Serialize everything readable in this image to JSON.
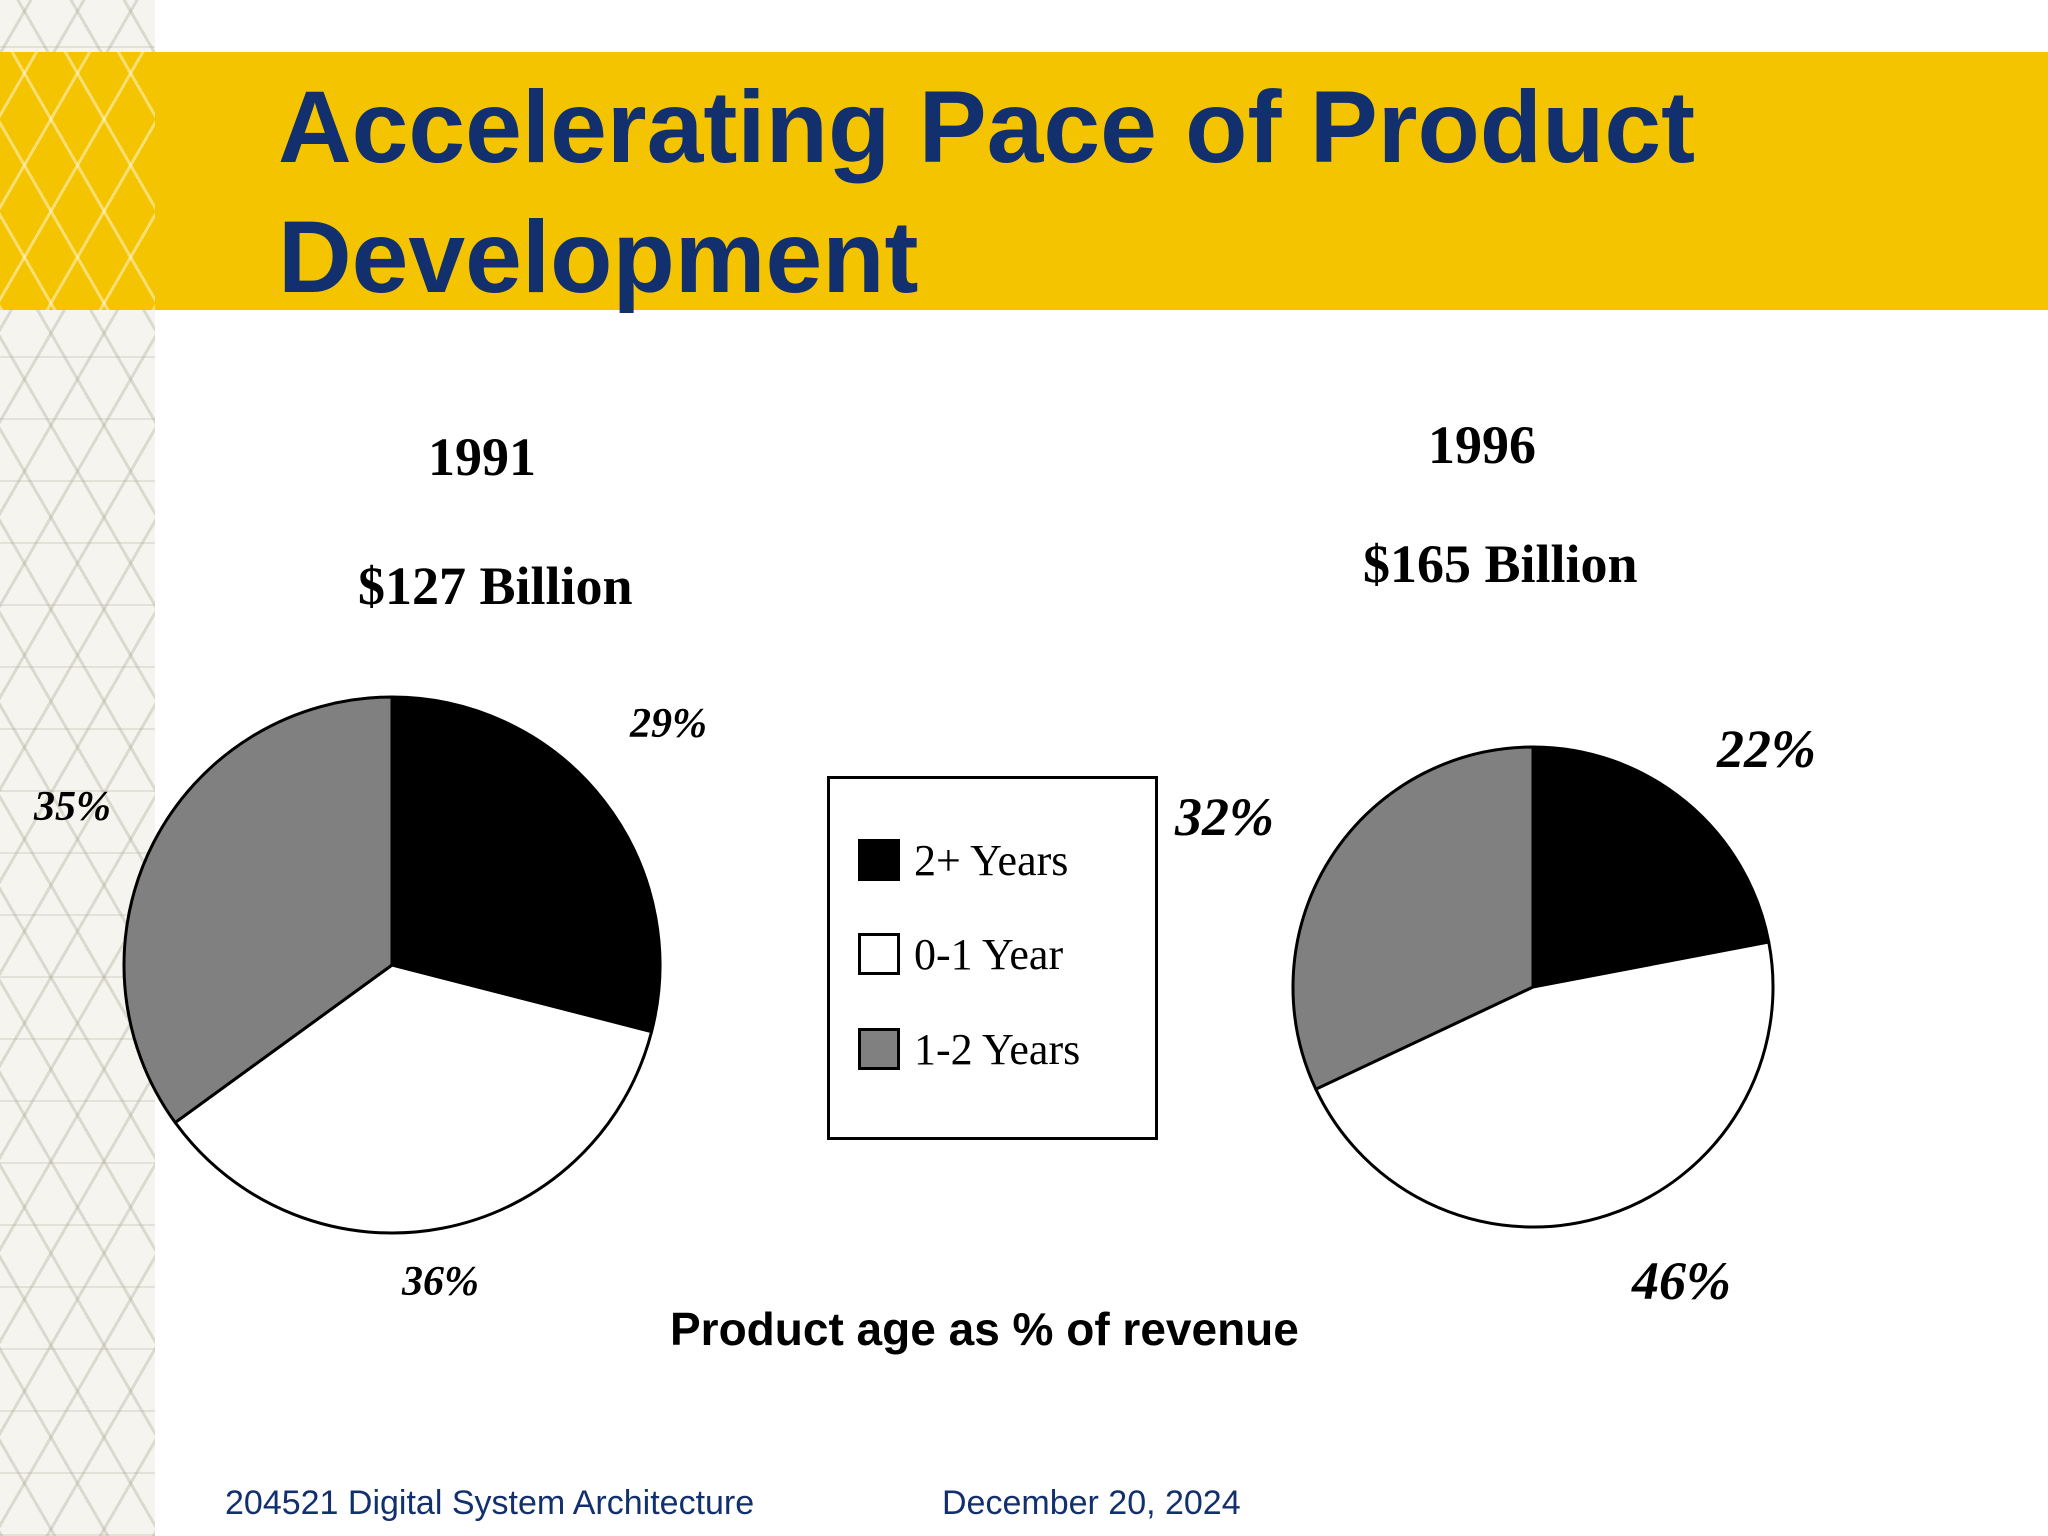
{
  "slide": {
    "title": "Accelerating Pace of Product Development",
    "caption": "Product age as % of revenue",
    "footer": {
      "course": "204521 Digital System Architecture",
      "date": "December 20, 2024"
    }
  },
  "colors": {
    "title_band": "#f5c400",
    "title_text": "#13306e",
    "series_2plus": "#000000",
    "series_01": "#ffffff",
    "series_12": "#808080"
  },
  "chart_data": [
    {
      "type": "pie",
      "title": "1991",
      "subtitle": "$127 Billion",
      "legend_placement": "center",
      "slices": [
        {
          "label": "2+ Years",
          "value": 29,
          "display": "29%"
        },
        {
          "label": "0-1 Year",
          "value": 36,
          "display": "36%"
        },
        {
          "label": "1-2 Years",
          "value": 35,
          "display": "35%"
        }
      ]
    },
    {
      "type": "pie",
      "title": "1996",
      "subtitle": "$165 Billion",
      "legend_placement": "center",
      "slices": [
        {
          "label": "2+ Years",
          "value": 22,
          "display": "22%"
        },
        {
          "label": "0-1 Year",
          "value": 46,
          "display": "46%"
        },
        {
          "label": "1-2 Years",
          "value": 32,
          "display": "32%"
        }
      ]
    }
  ],
  "legend": [
    {
      "label": "2+ Years",
      "color": "#000000"
    },
    {
      "label": "0-1 Year",
      "color": "#ffffff"
    },
    {
      "label": "1-2 Years",
      "color": "#808080"
    }
  ]
}
